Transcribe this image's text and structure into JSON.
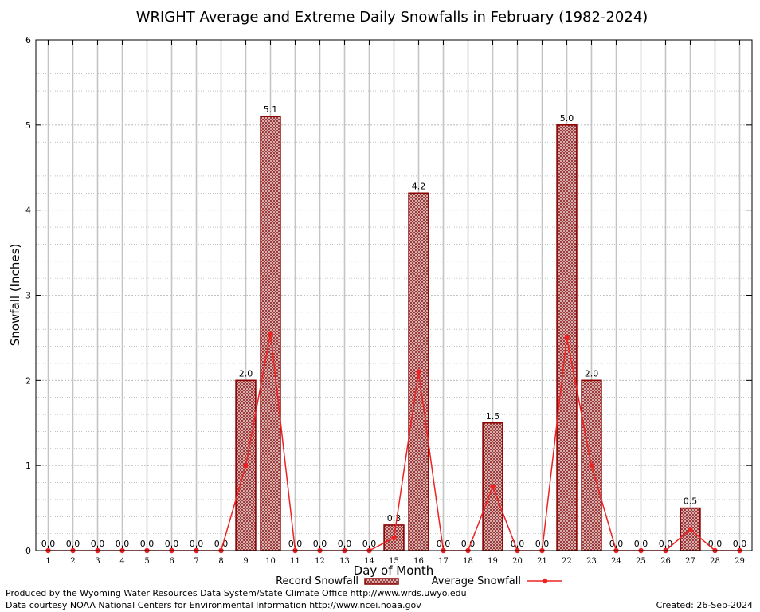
{
  "chart_data": {
    "type": "bar",
    "title": "WRIGHT Average and Extreme Daily Snowfalls in February (1982-2024)",
    "xlabel": "Day of Month",
    "ylabel": "Snowfall (Inches)",
    "ylim": [
      0,
      6
    ],
    "yticks": [
      0,
      1,
      2,
      3,
      4,
      5,
      6
    ],
    "grid": true,
    "legend_position": "bottom-center",
    "categories": [
      "1",
      "2",
      "3",
      "4",
      "5",
      "6",
      "7",
      "8",
      "9",
      "10",
      "11",
      "12",
      "13",
      "14",
      "15",
      "16",
      "17",
      "18",
      "19",
      "20",
      "21",
      "22",
      "23",
      "24",
      "25",
      "26",
      "27",
      "28",
      "29"
    ],
    "series": [
      {
        "name": "Record Snowfall",
        "kind": "bar",
        "values": [
          0,
          0,
          0,
          0,
          0,
          0,
          0,
          0,
          2.0,
          5.1,
          0,
          0,
          0,
          0,
          0.3,
          4.2,
          0,
          0,
          1.5,
          0,
          0,
          5.0,
          2.0,
          0,
          0,
          0,
          0.5,
          0,
          0
        ],
        "labels": [
          "0.0",
          "0.0",
          "0.0",
          "0.0",
          "0.0",
          "0.0",
          "0.0",
          "0.0",
          "2.0",
          "5.1",
          "0.0",
          "0.0",
          "0.0",
          "0.0",
          "0.3",
          "4.2",
          "0.0",
          "0.0",
          "1.5",
          "0.0",
          "0.0",
          "5.0",
          "2.0",
          "0.0",
          "0.0",
          "0.0",
          "0.5",
          "0.0",
          "0.0"
        ],
        "color": "#8b0000"
      },
      {
        "name": "Average Snowfall",
        "kind": "line",
        "values": [
          0,
          0,
          0,
          0,
          0,
          0,
          0,
          0,
          1.0,
          2.55,
          0,
          0,
          0,
          0,
          0.15,
          2.1,
          0,
          0,
          0.75,
          0,
          0,
          2.5,
          1.0,
          0,
          0,
          0,
          0.25,
          0,
          0
        ],
        "color": "#ee2222"
      }
    ]
  },
  "footer": {
    "produced_by": "Produced by the Wyoming Water Resources Data System/State Climate Office http://www.wrds.uwyo.edu",
    "data_courtesy": "Data courtesy NOAA National Centers for Environmental Information http://www.ncei.noaa.gov",
    "created": "Created:  26-Sep-2024"
  }
}
